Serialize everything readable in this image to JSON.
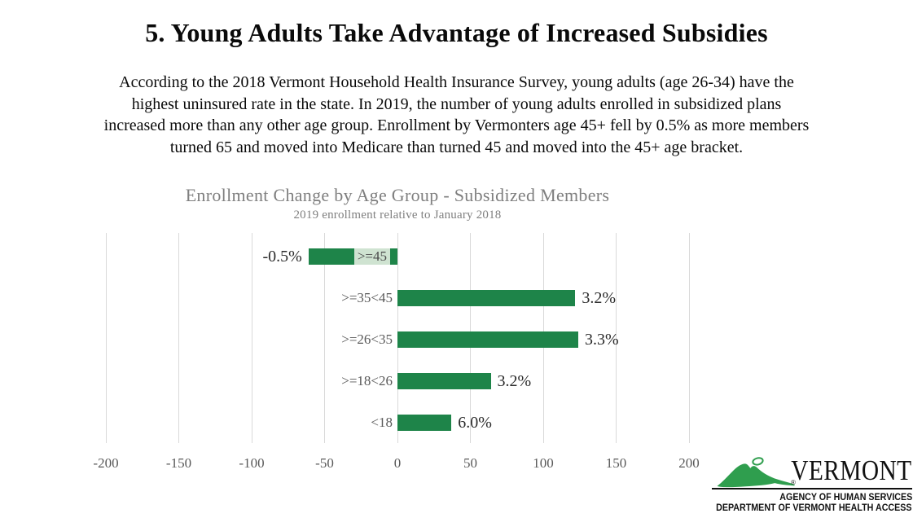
{
  "page": {
    "title": "5. Young Adults Take Advantage of Increased Subsidies",
    "intro_lines": [
      "According to the 2018 Vermont Household Health Insurance Survey, young adults (age 26-34) have the",
      "highest uninsured rate in the state. In 2019, the number of young adults enrolled in subsidized plans",
      "increased more than any other age group. Enrollment by Vermonters age 45+ fell by 0.5% as more members",
      "turned 65 and moved into Medicare than turned 45 and moved into the 45+ age bracket."
    ]
  },
  "chart_data": {
    "type": "bar",
    "orientation": "horizontal",
    "title": "Enrollment Change by Age Group - Subsidized Members",
    "subtitle": "2019 enrollment relative to January 2018",
    "categories": [
      ">=45",
      ">=35<45",
      ">=26<35",
      ">=18<26",
      "<18"
    ],
    "values": [
      -61,
      122,
      124,
      64,
      37
    ],
    "data_labels": [
      "-0.5%",
      "3.2%",
      "3.3%",
      "3.2%",
      "6.0%"
    ],
    "xlim": [
      -200,
      200
    ],
    "x_ticks": [
      -200,
      -150,
      -100,
      -50,
      0,
      50,
      100,
      150,
      200
    ],
    "grid": true,
    "legend": false,
    "colors": {
      "bar": "#1e8449",
      "category_highlight_bg": "#cfe3d1",
      "gridline": "#d9d9d9",
      "title_text": "#7f7f7f",
      "axis_text": "#595959",
      "category_text": "#595959",
      "value_text": "#2b2b2b"
    }
  },
  "logo": {
    "brand": "VERMONT",
    "registered_mark": "®",
    "line1": "AGENCY OF HUMAN SERVICES",
    "line2": "DEPARTMENT OF VERMONT HEALTH ACCESS",
    "green": "#2f9e4e"
  }
}
